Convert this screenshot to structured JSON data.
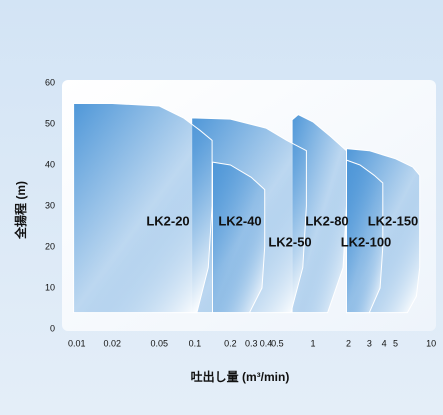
{
  "chart_data": {
    "type": "area",
    "y_label": "全揚程 (m)",
    "x_label": "吐出し量 (m³/min)",
    "log_x": true,
    "xlim": [
      0.0075,
      11
    ],
    "ylim": [
      0,
      60
    ],
    "yticks": [
      0,
      10,
      20,
      30,
      40,
      50,
      60
    ],
    "xticks": [
      0.01,
      0.02,
      0.05,
      0.1,
      0.2,
      0.3,
      0.4,
      0.5,
      1,
      2,
      3,
      4,
      5,
      10
    ],
    "color": "#4f97d8",
    "series": [
      {
        "name": "LK2-150",
        "x": [
          1.92,
          1.92,
          3,
          5,
          7,
          8.0,
          8.0,
          7.5,
          6.3
        ],
        "values": [
          4,
          44,
          43.5,
          41.5,
          39.5,
          37.5,
          15,
          8,
          4
        ]
      },
      {
        "name": "LK2-100",
        "x": [
          1.92,
          1.92,
          2.5,
          3.3,
          3.9,
          3.9,
          3.7,
          3.0
        ],
        "values": [
          4,
          41.2,
          40,
          37.5,
          35.6,
          20,
          10,
          4
        ]
      },
      {
        "name": "LK2-80",
        "x": [
          0.665,
          0.665,
          0.75,
          1.0,
          1.4,
          1.92,
          1.92,
          1.8,
          1.33
        ],
        "values": [
          4,
          51,
          52.3,
          50.5,
          47,
          43.5,
          30,
          15,
          4
        ]
      },
      {
        "name": "LK2-40",
        "x": [
          0.094,
          0.094,
          0.2,
          0.4,
          0.6,
          0.88,
          0.88,
          0.82,
          0.65
        ],
        "values": [
          4,
          51.5,
          51.2,
          49,
          46,
          43.5,
          30,
          15,
          4
        ]
      },
      {
        "name": "LK2-50",
        "x": [
          0.141,
          0.141,
          0.2,
          0.3,
          0.39,
          0.39,
          0.37,
          0.29
        ],
        "values": [
          4,
          40.7,
          40,
          37,
          34,
          20,
          10,
          4
        ]
      },
      {
        "name": "LK2-20",
        "x": [
          0.0094,
          0.0094,
          0.02,
          0.05,
          0.08,
          0.11,
          0.14,
          0.14,
          0.13,
          0.104
        ],
        "values": [
          4,
          55,
          55,
          54.4,
          51.5,
          48.5,
          46,
          30,
          15,
          4
        ]
      }
    ]
  }
}
